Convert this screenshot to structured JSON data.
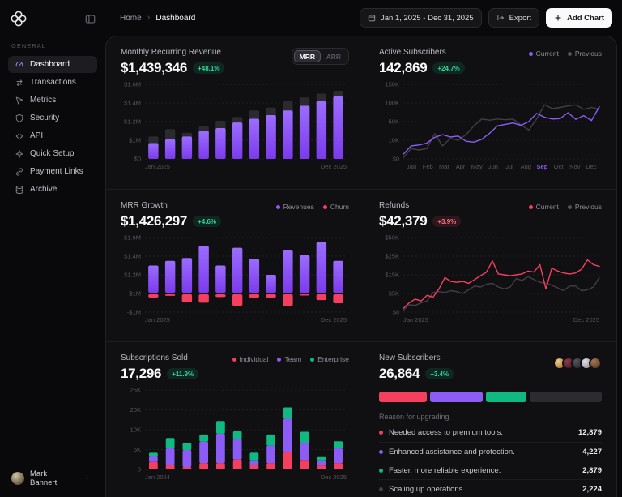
{
  "sidebar": {
    "section_label": "GENERAL",
    "items": [
      {
        "label": "Dashboard",
        "icon": "gauge",
        "active": true
      },
      {
        "label": "Transactions",
        "icon": "swap",
        "active": false
      },
      {
        "label": "Metrics",
        "icon": "cursor",
        "active": false
      },
      {
        "label": "Security",
        "icon": "shield",
        "active": false
      },
      {
        "label": "API",
        "icon": "code",
        "active": false
      },
      {
        "label": "Quick Setup",
        "icon": "sparkle",
        "active": false
      },
      {
        "label": "Payment Links",
        "icon": "link",
        "active": false
      },
      {
        "label": "Archive",
        "icon": "archive",
        "active": false
      }
    ],
    "user": {
      "name": "Mark Bannert"
    }
  },
  "topbar": {
    "breadcrumb": {
      "home": "Home",
      "current": "Dashboard"
    },
    "date_range": "Jan 1, 2025 - Dec 31, 2025",
    "export_label": "Export",
    "add_chart_label": "Add Chart"
  },
  "colors": {
    "purple": "#8b5cf6",
    "purple_light": "#9b6dff",
    "purple_deep": "#7c3aed",
    "red": "#f43f5e",
    "green": "#10b981",
    "gray_line": "#45454c",
    "bar_cap": "#2a2a2f"
  },
  "chart_data": [
    {
      "type": "bar",
      "name": "monthly-recurring-revenue",
      "title": "Monthly Recurring Revenue",
      "value": "$1,439,346",
      "change": "+48.1%",
      "change_tone": "green",
      "toggle": [
        "MRR",
        "ARR"
      ],
      "active_toggle": "MRR",
      "tick_labels": [
        "$0",
        "$1M",
        "$1.2M",
        "$1.4M",
        "$1.6M"
      ],
      "tick_values": [
        0,
        1,
        1.2,
        1.4,
        1.6
      ],
      "x_start": "Jan 2025",
      "x_end": "Dec 2025",
      "unit": "$M",
      "values": [
        0.85,
        1.01,
        1.04,
        1.1,
        1.13,
        1.19,
        1.23,
        1.27,
        1.32,
        1.37,
        1.42,
        1.47
      ],
      "cap_values": [
        1.04,
        1.12,
        1.08,
        1.15,
        1.21,
        1.25,
        1.32,
        1.35,
        1.42,
        1.46,
        1.5,
        1.53
      ]
    },
    {
      "type": "line",
      "name": "active-subscribers",
      "title": "Active Subscribers",
      "value": "142,869",
      "change": "+24.7%",
      "change_tone": "green",
      "legend": [
        {
          "label": "Current",
          "color": "#8b5cf6"
        },
        {
          "label": "Previous",
          "color": "#52525b"
        }
      ],
      "tick_labels": [
        "$0",
        "10K",
        "50K",
        "100K",
        "150K"
      ],
      "tick_values": [
        0,
        10,
        50,
        100,
        150
      ],
      "x_labels": [
        "Jan",
        "Feb",
        "Mar",
        "Apr",
        "May",
        "Jun",
        "Jul",
        "Aug",
        "Sep",
        "Oct",
        "Nov",
        "Dec"
      ],
      "x_highlight": "Sep",
      "unit": "K",
      "series": [
        {
          "name": "Previous",
          "color": "#3f3f46",
          "values": [
            0.7,
            5.5,
            4.8,
            5.5,
            24,
            7,
            14,
            10,
            22,
            41,
            57,
            54,
            57,
            55,
            57,
            43,
            32,
            57,
            95,
            85,
            88,
            92,
            95,
            83,
            88,
            84
          ]
        },
        {
          "name": "Current",
          "color": "#8b5cf6",
          "values": [
            2.5,
            7,
            7.5,
            8.5,
            16,
            22,
            17,
            19,
            9.5,
            9,
            12,
            25,
            41,
            44,
            47,
            42,
            50,
            72,
            62,
            57,
            58,
            74,
            56,
            66,
            53,
            90
          ]
        }
      ]
    },
    {
      "type": "diverging-bar",
      "name": "mrr-growth",
      "title": "MRR Growth",
      "value": "$1,426,297",
      "change": "+4.6%",
      "change_tone": "green",
      "legend": [
        {
          "label": "Revenues",
          "color": "#8b5cf6"
        },
        {
          "label": "Churn",
          "color": "#f43f5e"
        }
      ],
      "tick_labels": [
        "-$1M",
        "$1M",
        "$1.2M",
        "$1.4M",
        "$1.6M"
      ],
      "tick_values": [
        -1,
        1,
        1.2,
        1.4,
        1.6
      ],
      "baseline": 1.0,
      "x_start": "Jan 2025",
      "x_end": "Dec 2025",
      "unit": "$M",
      "revenue_values": [
        1.3,
        1.35,
        1.38,
        1.51,
        1.3,
        1.49,
        1.37,
        1.2,
        1.47,
        1.41,
        1.55,
        1.35
      ],
      "churn_values": [
        0.56,
        0.75,
        0.07,
        0.01,
        0.62,
        -0.32,
        0.56,
        0.56,
        -0.34,
        0.78,
        0.29,
        -0.04
      ]
    },
    {
      "type": "line",
      "name": "refunds",
      "title": "Refunds",
      "value": "$42,379",
      "change": "+3.9%",
      "change_tone": "red",
      "legend": [
        {
          "label": "Current",
          "color": "#f43f5e"
        },
        {
          "label": "Previous",
          "color": "#52525b"
        }
      ],
      "tick_labels": [
        "$0",
        "$5K",
        "$15K",
        "$25K",
        "$50K"
      ],
      "tick_values": [
        0,
        5,
        15,
        25,
        50
      ],
      "x_start": "Jan 2025",
      "x_end": "Dec 2025",
      "unit": "K",
      "series": [
        {
          "name": "Previous",
          "color": "#3f3f46",
          "values": [
            0.5,
            2,
            1.8,
            2.5,
            3,
            5.5,
            6,
            5.5,
            6.5,
            6,
            5,
            7,
            9,
            8.5,
            10,
            10.5,
            8.5,
            7.5,
            8.5,
            13,
            12,
            14,
            12.5,
            11,
            10.5,
            9.5,
            8,
            6.5,
            9,
            9,
            6.5,
            7,
            8.5,
            13.5
          ]
        },
        {
          "name": "Current",
          "color": "#f43f5e",
          "values": [
            1,
            2.5,
            3.5,
            3,
            4.5,
            4,
            7.5,
            13.5,
            11.5,
            11,
            11.5,
            10.5,
            12.5,
            14.5,
            16.5,
            22.5,
            15.5,
            15,
            14.5,
            15,
            15.5,
            17,
            16.5,
            20.5,
            7.5,
            18.5,
            17,
            16,
            15.5,
            16,
            18,
            23,
            20.5,
            19.5
          ]
        }
      ]
    },
    {
      "type": "stacked-bar",
      "name": "subscriptions-sold",
      "title": "Subscriptions Sold",
      "value": "17,296",
      "change": "+11.9%",
      "change_tone": "green",
      "legend": [
        {
          "label": "Individual",
          "color": "#f43f5e"
        },
        {
          "label": "Team",
          "color": "#8b5cf6"
        },
        {
          "label": "Enterprise",
          "color": "#10b981"
        }
      ],
      "tick_labels": [
        "0",
        "5K",
        "10K",
        "20K",
        "25K"
      ],
      "tick_values": [
        0,
        5,
        10,
        20,
        25
      ],
      "x_start": "Jan 2024",
      "x_end": "Dec 2025",
      "unit": "K",
      "series": [
        {
          "name": "Individual",
          "color": "#f43f5e",
          "values": [
            1.9,
            1.1,
            0.6,
            1.6,
            1.6,
            2.5,
            1.1,
            1.6,
            4.3,
            2.4,
            1.0,
            1.6
          ]
        },
        {
          "name": "Team",
          "color": "#8b5cf6",
          "values": [
            1.4,
            4.2,
            4.3,
            5.4,
            7.4,
            5.2,
            1.2,
            4.4,
            11.2,
            4.3,
            1.3,
            3.7
          ]
        },
        {
          "name": "Enterprise",
          "color": "#10b981",
          "values": [
            0.9,
            2.6,
            1.8,
            1.8,
            5.4,
            1.9,
            1.9,
            2.8,
            5.1,
            2.8,
            0.8,
            1.8
          ]
        }
      ]
    },
    {
      "type": "breakdown",
      "name": "new-subscribers",
      "title": "New Subscribers",
      "value": "26,864",
      "change": "+3.4%",
      "change_tone": "green",
      "avatar_count": 5,
      "section_label": "Reason for upgrading",
      "bar_segments": [
        {
          "color": "#f43f5e",
          "pct": 22.5
        },
        {
          "color": "#8b5cf6",
          "pct": 24.5
        },
        {
          "color": "#10b981",
          "pct": 19
        },
        {
          "color": "#2b2b30",
          "pct": 34
        }
      ],
      "reasons": [
        {
          "label": "Needed access to premium tools.",
          "value": "12,879",
          "color": "#f43f5e"
        },
        {
          "label": "Enhanced assistance and protection.",
          "value": "4,227",
          "color": "#8b5cf6"
        },
        {
          "label": "Faster, more reliable experience.",
          "value": "2,879",
          "color": "#10b981"
        },
        {
          "label": "Scaling up operations.",
          "value": "2,224",
          "color": "#3f3f46"
        }
      ]
    }
  ]
}
